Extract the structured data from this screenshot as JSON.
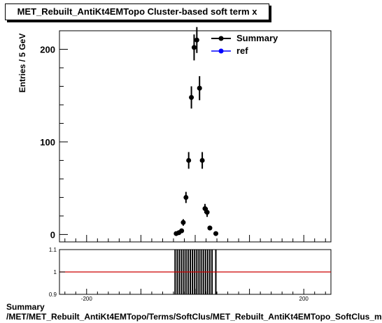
{
  "chart_data": [
    {
      "type": "scatter",
      "title": "MET_Rebuilt_AntiKt4EMTopo Cluster-based soft term x",
      "ylabel": "Entries / 5 GeV",
      "xlim": [
        -250,
        250
      ],
      "ylim": [
        -8,
        220
      ],
      "y_ticks": [
        0,
        100,
        200
      ],
      "legend_position": "top-right",
      "series": [
        {
          "name": "Summary",
          "color": "#000000",
          "marker": "filled-circle",
          "points": [
            {
              "x": -35,
              "y": 1,
              "err": 1
            },
            {
              "x": -30,
              "y": 2,
              "err": 1.5
            },
            {
              "x": -25,
              "y": 4,
              "err": 2
            },
            {
              "x": -22,
              "y": 13,
              "err": 3.5
            },
            {
              "x": -17,
              "y": 40,
              "err": 6
            },
            {
              "x": -12,
              "y": 80,
              "err": 9
            },
            {
              "x": -7,
              "y": 148,
              "err": 12
            },
            {
              "x": -2,
              "y": 202,
              "err": 14
            },
            {
              "x": 3,
              "y": 210,
              "err": 14
            },
            {
              "x": 8,
              "y": 158,
              "err": 13
            },
            {
              "x": 13,
              "y": 80,
              "err": 9
            },
            {
              "x": 18,
              "y": 28,
              "err": 5
            },
            {
              "x": 22,
              "y": 24,
              "err": 5
            },
            {
              "x": 27,
              "y": 7,
              "err": 2.5
            },
            {
              "x": 38,
              "y": 1,
              "err": 1
            }
          ]
        },
        {
          "name": "ref",
          "color": "#0000ff",
          "marker": "filled-circle",
          "points": []
        }
      ]
    },
    {
      "type": "line",
      "xlim": [
        -250,
        250
      ],
      "ylim": [
        0.9,
        1.1
      ],
      "y_ticks": [
        0.9,
        1,
        1.1
      ],
      "y_tick_labels": [
        "0.9",
        "1",
        "1.1"
      ],
      "x_ticks": [
        -200,
        200
      ],
      "x_tick_labels": [
        "-200",
        "200"
      ],
      "reference_line": {
        "y": 1,
        "color": "#cc0000"
      },
      "ratio_bars_x": [
        -37,
        -33,
        -29,
        -25,
        -21,
        -17,
        -13,
        -9,
        -5,
        -1,
        3,
        7,
        11,
        15,
        19,
        23,
        27,
        31,
        38
      ]
    }
  ],
  "footer": {
    "line1": "Summary",
    "line2": "/MET/MET_Rebuilt_AntiKt4EMTopo/Terms/SoftClus/MET_Rebuilt_AntiKt4EMTopo_SoftClus_mpx"
  }
}
